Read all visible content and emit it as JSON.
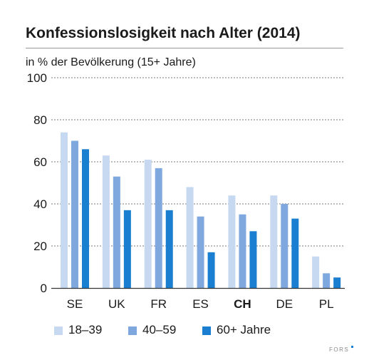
{
  "header": {
    "title": "Konfessionslosigkeit nach Alter (2014)",
    "subtitle": "in % der Bevölkerung (15+ Jahre)"
  },
  "brand": {
    "logo_text": "FORS"
  },
  "colors": {
    "series_1": "#c6d9f0",
    "series_2": "#7fa9de",
    "series_3": "#1a7fd0",
    "grid": "#777777",
    "axis": "#333333"
  },
  "chart_data": {
    "type": "bar",
    "title": "Konfessionslosigkeit nach Alter (2014)",
    "subtitle": "in % der Bevölkerung (15+ Jahre)",
    "categories": [
      "SE",
      "UK",
      "FR",
      "ES",
      "CH",
      "DE",
      "PL"
    ],
    "highlighted_category": "CH",
    "series": [
      {
        "name": "18–39",
        "values": [
          74,
          63,
          61,
          48,
          44,
          44,
          15
        ]
      },
      {
        "name": "40–59",
        "values": [
          70,
          53,
          57,
          34,
          35,
          40,
          7
        ]
      },
      {
        "name": "60+ Jahre",
        "values": [
          66,
          37,
          37,
          17,
          27,
          33,
          5
        ]
      }
    ],
    "y_ticks": [
      "0",
      "20",
      "40",
      "60",
      "80",
      "100"
    ],
    "ylim": [
      0,
      100
    ],
    "grid": true,
    "grid_style": "dashed",
    "legend_position": "bottom"
  }
}
